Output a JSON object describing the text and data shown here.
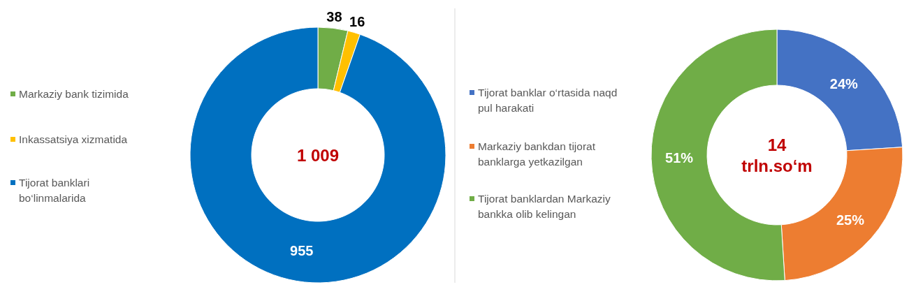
{
  "chart_data": [
    {
      "type": "donut",
      "categories": [
        "Markaziy bank tizimida",
        "Inkassatsiya xizmatida",
        "Tijorat banklari bo‘linmalarida"
      ],
      "values": [
        38,
        16,
        955
      ],
      "colors": [
        "#70ad47",
        "#ffc000",
        "#0070c0"
      ],
      "data_labels": true,
      "legend": "left",
      "annotations": [
        "1 009"
      ]
    },
    {
      "type": "donut",
      "categories": [
        "Tijorat banklar o‘rtasida naqd pul harakati",
        "Markaziy bankdan tijorat banklarga yetkazilgan",
        "Tijorat banklardan Markaziy bankka olib kelingan"
      ],
      "values": [
        24,
        25,
        51
      ],
      "colors": [
        "#4472c4",
        "#ed7d31",
        "#70ad47"
      ],
      "value_labels": [
        "24%",
        "25%",
        "51%"
      ],
      "legend": "left",
      "annotations": [
        "14 trln.so‘m"
      ]
    }
  ]
}
